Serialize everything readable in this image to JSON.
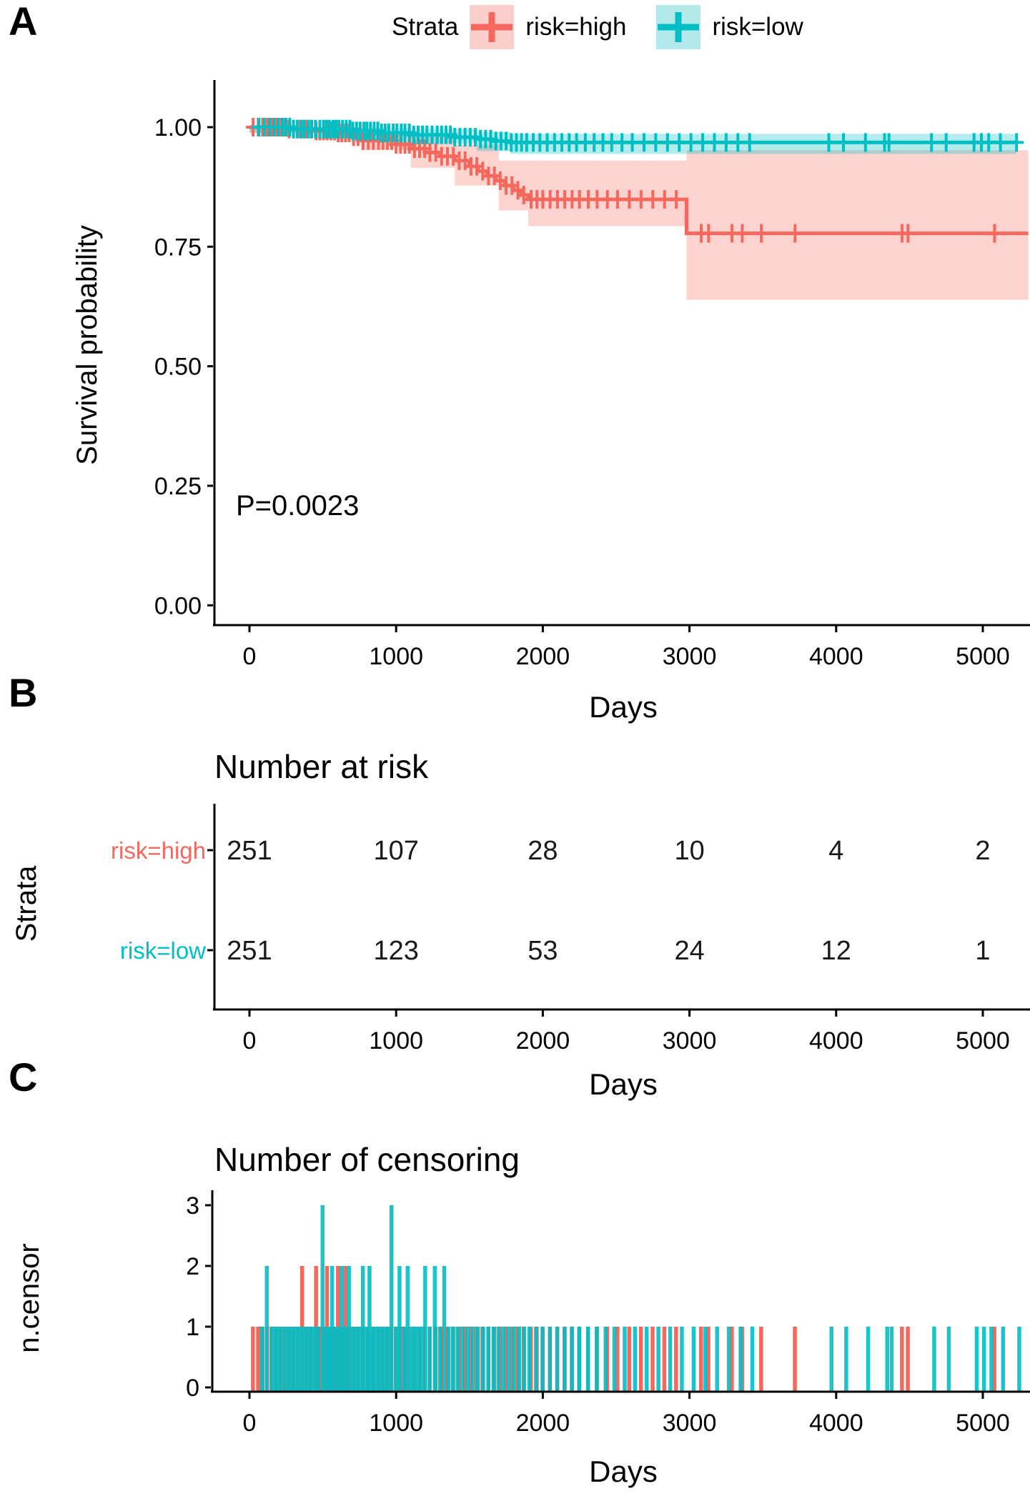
{
  "colors": {
    "high": "#F4685E",
    "low": "#00BFC4",
    "high_band": "rgba(248,118,109,0.32)",
    "low_band": "rgba(0,191,196,0.30)",
    "high_key_bg": "#FBD0CC",
    "low_key_bg": "#B3E9EA",
    "axis": "#000000",
    "value_text": "#1a1a1a"
  },
  "panels": [
    {
      "label": "A"
    },
    {
      "label": "B"
    },
    {
      "label": "C"
    }
  ],
  "legend": {
    "title": "Strata",
    "items": [
      {
        "label": "risk=high",
        "color_key": "high"
      },
      {
        "label": "risk=low",
        "color_key": "low"
      }
    ]
  },
  "chart_data": [
    {
      "type": "line",
      "subtype": "kaplan-meier-step",
      "panel": "A",
      "xlabel": "Days",
      "ylabel": "Survival probability",
      "pvalue_label": "P=0.0023",
      "xlim": [
        0,
        5310
      ],
      "ylim": [
        0,
        1.05
      ],
      "xticks": [
        {
          "label": "0",
          "v": 0
        },
        {
          "label": "1000",
          "v": 1000
        },
        {
          "label": "2000",
          "v": 2000
        },
        {
          "label": "3000",
          "v": 3000
        },
        {
          "label": "4000",
          "v": 4000
        },
        {
          "label": "5000",
          "v": 5000
        }
      ],
      "yticks": [
        {
          "label": "0.00",
          "v": 0
        },
        {
          "label": "0.25",
          "v": 0.25
        },
        {
          "label": "0.50",
          "v": 0.5
        },
        {
          "label": "0.75",
          "v": 0.75
        },
        {
          "label": "1.00",
          "v": 1
        }
      ],
      "legend_position": "top",
      "grid": false,
      "series": [
        {
          "name": "risk=high",
          "color_key": "high",
          "end_day": 5310,
          "steps": [
            [
              0,
              1.0
            ],
            [
              250,
              0.996
            ],
            [
              450,
              0.992
            ],
            [
              600,
              0.988
            ],
            [
              700,
              0.98
            ],
            [
              760,
              0.972
            ],
            [
              1000,
              0.964
            ],
            [
              1100,
              0.955
            ],
            [
              1200,
              0.947
            ],
            [
              1300,
              0.939
            ],
            [
              1400,
              0.93
            ],
            [
              1500,
              0.918
            ],
            [
              1560,
              0.908
            ],
            [
              1620,
              0.898
            ],
            [
              1680,
              0.888
            ],
            [
              1740,
              0.878
            ],
            [
              1800,
              0.868
            ],
            [
              1850,
              0.858
            ],
            [
              1900,
              0.849
            ],
            [
              2980,
              0.778
            ]
          ],
          "band": [
            [
              0,
              0.988,
              1.0
            ],
            [
              450,
              0.975,
              0.999
            ],
            [
              760,
              0.952,
              0.991
            ],
            [
              1100,
              0.915,
              0.982
            ],
            [
              1400,
              0.878,
              0.963
            ],
            [
              1700,
              0.826,
              0.93
            ],
            [
              1900,
              0.793,
              0.93
            ],
            [
              2980,
              0.639,
              0.952
            ]
          ],
          "censor_events": [
            [
              25,
              1
            ],
            [
              60,
              1
            ],
            [
              90,
              1
            ],
            [
              120,
              1
            ],
            [
              150,
              1
            ],
            [
              180,
              1
            ],
            [
              210,
              1
            ],
            [
              240,
              1
            ],
            [
              270,
              1
            ],
            [
              300,
              1
            ],
            [
              330,
              1
            ],
            [
              360,
              2
            ],
            [
              390,
              1
            ],
            [
              420,
              1
            ],
            [
              455,
              2
            ],
            [
              480,
              1
            ],
            [
              505,
              1
            ],
            [
              530,
              2
            ],
            [
              555,
              1
            ],
            [
              580,
              1
            ],
            [
              605,
              2
            ],
            [
              630,
              1
            ],
            [
              655,
              2
            ],
            [
              680,
              1
            ],
            [
              710,
              1
            ],
            [
              740,
              1
            ],
            [
              775,
              1
            ],
            [
              810,
              1
            ],
            [
              845,
              1
            ],
            [
              880,
              1
            ],
            [
              910,
              1
            ],
            [
              940,
              1
            ],
            [
              970,
              1
            ],
            [
              1000,
              1
            ],
            [
              1030,
              1
            ],
            [
              1060,
              1
            ],
            [
              1090,
              1
            ],
            [
              1125,
              1
            ],
            [
              1160,
              1
            ],
            [
              1195,
              1
            ],
            [
              1230,
              1
            ],
            [
              1270,
              1
            ],
            [
              1310,
              1
            ],
            [
              1350,
              1
            ],
            [
              1390,
              1
            ],
            [
              1430,
              1
            ],
            [
              1470,
              1
            ],
            [
              1510,
              1
            ],
            [
              1550,
              1
            ],
            [
              1590,
              1
            ],
            [
              1630,
              1
            ],
            [
              1670,
              1
            ],
            [
              1710,
              1
            ],
            [
              1750,
              1
            ],
            [
              1790,
              1
            ],
            [
              1830,
              1
            ],
            [
              1870,
              1
            ],
            [
              1920,
              1
            ],
            [
              1960,
              1
            ],
            [
              2000,
              1
            ],
            [
              2050,
              1
            ],
            [
              2100,
              1
            ],
            [
              2150,
              1
            ],
            [
              2200,
              1
            ],
            [
              2250,
              1
            ],
            [
              2310,
              1
            ],
            [
              2370,
              1
            ],
            [
              2440,
              1
            ],
            [
              2510,
              1
            ],
            [
              2590,
              1
            ],
            [
              2670,
              1
            ],
            [
              2750,
              1
            ],
            [
              2830,
              1
            ],
            [
              2910,
              1
            ],
            [
              3080,
              1
            ],
            [
              3130,
              1
            ],
            [
              3290,
              1
            ],
            [
              3360,
              1
            ],
            [
              3490,
              1
            ],
            [
              3720,
              1
            ],
            [
              4450,
              1
            ],
            [
              4490,
              1
            ],
            [
              5080,
              1
            ]
          ]
        },
        {
          "name": "risk=low",
          "color_key": "low",
          "end_day": 5230,
          "steps": [
            [
              0,
              1.0
            ],
            [
              300,
              0.996
            ],
            [
              700,
              0.992
            ],
            [
              900,
              0.988
            ],
            [
              1100,
              0.984
            ],
            [
              1400,
              0.979
            ],
            [
              1550,
              0.975
            ],
            [
              1650,
              0.971
            ],
            [
              1780,
              0.968
            ]
          ],
          "band": [
            [
              0,
              0.988,
              1.0
            ],
            [
              700,
              0.98,
              0.999
            ],
            [
              1100,
              0.966,
              0.996
            ],
            [
              1550,
              0.95,
              0.99
            ],
            [
              1780,
              0.944,
              0.986
            ]
          ],
          "censor_events": [
            [
              65,
              1
            ],
            [
              100,
              2
            ],
            [
              135,
              1
            ],
            [
              165,
              1
            ],
            [
              195,
              1
            ],
            [
              225,
              1
            ],
            [
              250,
              1
            ],
            [
              275,
              1
            ],
            [
              300,
              1
            ],
            [
              325,
              1
            ],
            [
              350,
              1
            ],
            [
              375,
              1
            ],
            [
              400,
              1
            ],
            [
              425,
              1
            ],
            [
              450,
              1
            ],
            [
              480,
              3
            ],
            [
              505,
              1
            ],
            [
              525,
              1
            ],
            [
              545,
              2
            ],
            [
              570,
              1
            ],
            [
              590,
              1
            ],
            [
              610,
              2
            ],
            [
              635,
              1
            ],
            [
              660,
              2
            ],
            [
              685,
              1
            ],
            [
              705,
              1
            ],
            [
              730,
              1
            ],
            [
              755,
              2
            ],
            [
              780,
              1
            ],
            [
              800,
              2
            ],
            [
              825,
              1
            ],
            [
              850,
              1
            ],
            [
              875,
              1
            ],
            [
              900,
              1
            ],
            [
              925,
              1
            ],
            [
              950,
              3
            ],
            [
              980,
              1
            ],
            [
              1005,
              2
            ],
            [
              1035,
              1
            ],
            [
              1060,
              2
            ],
            [
              1090,
              1
            ],
            [
              1120,
              1
            ],
            [
              1150,
              1
            ],
            [
              1180,
              2
            ],
            [
              1210,
              1
            ],
            [
              1245,
              2
            ],
            [
              1280,
              1
            ],
            [
              1310,
              2
            ],
            [
              1340,
              1
            ],
            [
              1370,
              1
            ],
            [
              1400,
              1
            ],
            [
              1435,
              1
            ],
            [
              1470,
              1
            ],
            [
              1505,
              1
            ],
            [
              1540,
              1
            ],
            [
              1575,
              1
            ],
            [
              1610,
              1
            ],
            [
              1645,
              1
            ],
            [
              1680,
              1
            ],
            [
              1715,
              1
            ],
            [
              1750,
              1
            ],
            [
              1785,
              1
            ],
            [
              1820,
              1
            ],
            [
              1855,
              1
            ],
            [
              1890,
              1
            ],
            [
              1935,
              1
            ],
            [
              1980,
              1
            ],
            [
              2030,
              1
            ],
            [
              2080,
              1
            ],
            [
              2130,
              1
            ],
            [
              2180,
              1
            ],
            [
              2230,
              1
            ],
            [
              2290,
              1
            ],
            [
              2350,
              1
            ],
            [
              2410,
              1
            ],
            [
              2470,
              1
            ],
            [
              2540,
              1
            ],
            [
              2610,
              1
            ],
            [
              2690,
              1
            ],
            [
              2770,
              1
            ],
            [
              2850,
              1
            ],
            [
              2930,
              1
            ],
            [
              3010,
              1
            ],
            [
              3090,
              1
            ],
            [
              3170,
              1
            ],
            [
              3250,
              1
            ],
            [
              3330,
              1
            ],
            [
              3410,
              1
            ],
            [
              3950,
              1
            ],
            [
              4050,
              1
            ],
            [
              4200,
              1
            ],
            [
              4330,
              1
            ],
            [
              4360,
              1
            ],
            [
              4650,
              1
            ],
            [
              4750,
              1
            ],
            [
              4940,
              1
            ],
            [
              4990,
              1
            ],
            [
              5040,
              1
            ],
            [
              5120,
              1
            ],
            [
              5230,
              1
            ]
          ]
        }
      ]
    },
    {
      "type": "table",
      "panel": "B",
      "title": "Number at risk",
      "ylabel": "Strata",
      "xlabel": "Days",
      "xticks": [
        {
          "label": "0",
          "v": 0
        },
        {
          "label": "1000",
          "v": 1000
        },
        {
          "label": "2000",
          "v": 2000
        },
        {
          "label": "3000",
          "v": 3000
        },
        {
          "label": "4000",
          "v": 4000
        },
        {
          "label": "5000",
          "v": 5000
        }
      ],
      "rows": [
        {
          "label": "risk=high",
          "color_key": "high",
          "values": [
            "251",
            "107",
            "28",
            "10",
            "4",
            "2"
          ]
        },
        {
          "label": "risk=low",
          "color_key": "low",
          "values": [
            "251",
            "123",
            "53",
            "24",
            "12",
            "1"
          ]
        }
      ]
    },
    {
      "type": "bar",
      "subtype": "censor-ticks",
      "panel": "C",
      "title": "Number of censoring",
      "ylabel": "n.censor",
      "xlabel": "Days",
      "note": "bars drawn from censor_events of chart_data[0].series",
      "xticks": [
        {
          "label": "0",
          "v": 0
        },
        {
          "label": "1000",
          "v": 1000
        },
        {
          "label": "2000",
          "v": 2000
        },
        {
          "label": "3000",
          "v": 3000
        },
        {
          "label": "4000",
          "v": 4000
        },
        {
          "label": "5000",
          "v": 5000
        }
      ],
      "yticks": [
        {
          "label": "0",
          "v": 0
        },
        {
          "label": "1",
          "v": 1
        },
        {
          "label": "2",
          "v": 2
        },
        {
          "label": "3",
          "v": 3
        }
      ],
      "ylim": [
        0,
        3
      ]
    }
  ]
}
